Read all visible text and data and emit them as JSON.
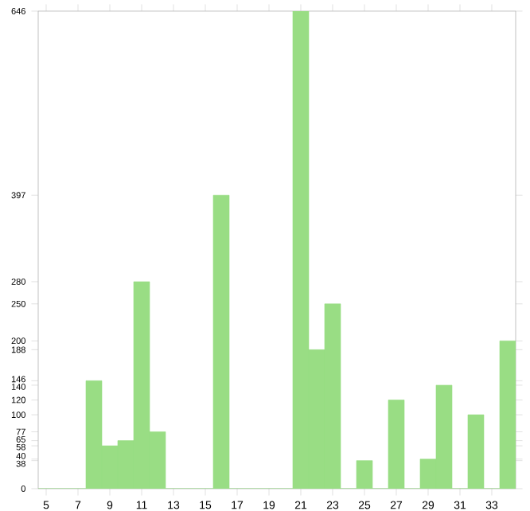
{
  "chart_data": {
    "type": "bar",
    "categories": [
      "5",
      null,
      "7",
      null,
      "9",
      null,
      "11",
      null,
      "13",
      null,
      "15",
      null,
      "17",
      null,
      "19",
      null,
      "21",
      null,
      "23",
      null,
      "25",
      null,
      "27",
      null,
      "29",
      null,
      "31",
      null,
      "33",
      null
    ],
    "values": [
      0,
      0,
      0,
      146,
      58,
      65,
      280,
      77,
      0,
      0,
      0,
      397,
      0,
      0,
      0,
      0,
      646,
      188,
      250,
      0,
      38,
      0,
      120,
      0,
      40,
      140,
      0,
      100,
      0,
      200
    ],
    "color": "#99dd84",
    "ylim": [
      0,
      646
    ],
    "yticks": [
      0,
      38,
      40,
      58,
      65,
      77,
      100,
      120,
      140,
      146,
      188,
      200,
      250,
      280,
      397,
      646
    ],
    "grid": false
  }
}
